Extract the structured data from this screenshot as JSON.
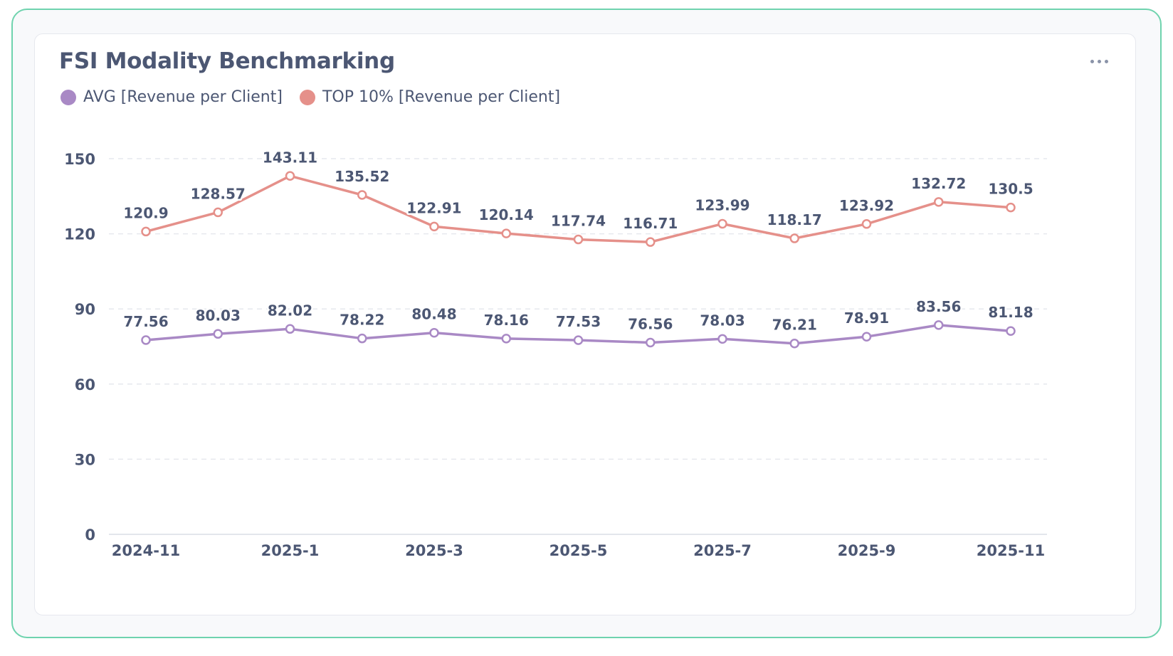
{
  "card": {
    "title": "FSI Modality Benchmarking",
    "menu_icon": "more-horizontal-icon"
  },
  "legend": [
    {
      "label": "AVG [Revenue per Client]",
      "color": "#a989c5"
    },
    {
      "label": "TOP 10% [Revenue per Client]",
      "color": "#e5908a"
    }
  ],
  "chart_data": {
    "type": "line",
    "title": "FSI Modality Benchmarking",
    "xlabel": "",
    "ylabel": "",
    "ylim": [
      0,
      150
    ],
    "yticks": [
      0,
      30,
      60,
      90,
      120,
      150
    ],
    "grid": true,
    "legend_position": "top-left",
    "x": [
      "2024-11",
      "2024-12",
      "2025-1",
      "2025-2",
      "2025-3",
      "2025-4",
      "2025-5",
      "2025-6",
      "2025-7",
      "2025-8",
      "2025-9",
      "2025-10",
      "2025-11"
    ],
    "xtick_labels": [
      "2024-11",
      "2025-1",
      "2025-3",
      "2025-5",
      "2025-7",
      "2025-9",
      "2025-11"
    ],
    "series": [
      {
        "name": "AVG [Revenue per Client]",
        "color": "#a989c5",
        "values": [
          77.56,
          80.03,
          82.02,
          78.22,
          80.48,
          78.16,
          77.53,
          76.56,
          78.03,
          76.21,
          78.91,
          83.56,
          81.18
        ]
      },
      {
        "name": "TOP 10% [Revenue per Client]",
        "color": "#e5908a",
        "values": [
          120.9,
          128.57,
          143.11,
          135.52,
          122.91,
          120.14,
          117.74,
          116.71,
          123.99,
          118.17,
          123.92,
          132.72,
          130.5
        ]
      }
    ]
  }
}
